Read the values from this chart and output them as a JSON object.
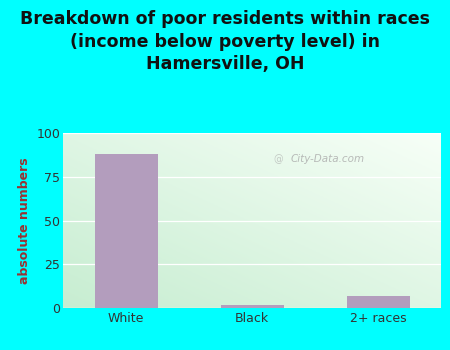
{
  "categories": [
    "White",
    "Black",
    "2+ races"
  ],
  "values": [
    88,
    2,
    7
  ],
  "bar_color": "#b39dbd",
  "title_line1": "Breakdown of poor residents within races",
  "title_line2": "(income below poverty level) in",
  "title_line3": "Hamersville, OH",
  "ylabel": "absolute numbers",
  "ylim": [
    0,
    100
  ],
  "yticks": [
    0,
    25,
    50,
    75,
    100
  ],
  "bg_outer": "#00ffff",
  "title_fontsize": 12.5,
  "ylabel_fontsize": 9,
  "tick_fontsize": 9,
  "watermark": "City-Data.com",
  "grid_color": "#e0ece0",
  "bar_width": 0.5,
  "ylabel_color": "#993333"
}
